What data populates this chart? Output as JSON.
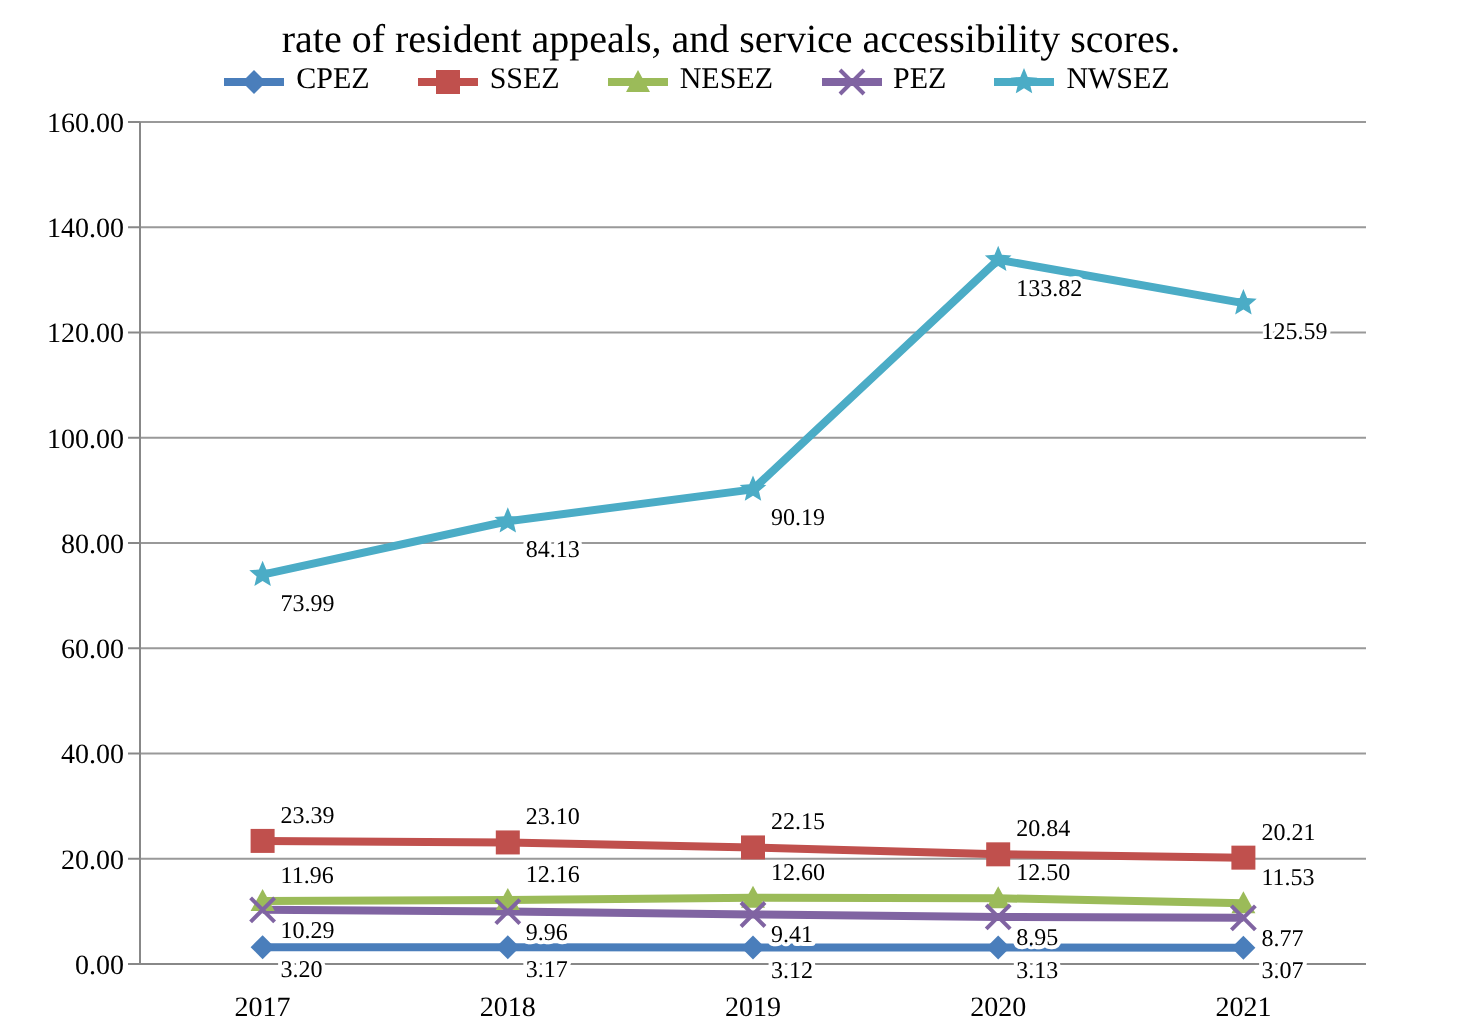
{
  "chart_data": {
    "type": "line",
    "title": "rate of resident appeals, and service accessibility scores.",
    "categories": [
      "2017",
      "2018",
      "2019",
      "2020",
      "2021"
    ],
    "series": [
      {
        "name": "CPEZ",
        "color": "#4a7ebb",
        "marker": "diamond",
        "values": [
          3.2,
          3.17,
          3.12,
          3.13,
          3.07
        ],
        "value_labels": [
          "3.20",
          "3.17",
          "3.12",
          "3.13",
          "3.07"
        ]
      },
      {
        "name": "SSEZ",
        "color": "#c0504d",
        "marker": "square",
        "values": [
          23.39,
          23.1,
          22.15,
          20.84,
          20.21
        ],
        "value_labels": [
          "23.39",
          "23.10",
          "22.15",
          "20.84",
          "20.21"
        ]
      },
      {
        "name": "NESEZ",
        "color": "#9bbb59",
        "marker": "triangle",
        "values": [
          11.96,
          12.16,
          12.6,
          12.5,
          11.53
        ],
        "value_labels": [
          "11.96",
          "12.16",
          "12.60",
          "12.50",
          "11.53"
        ]
      },
      {
        "name": "PEZ",
        "color": "#8064a2",
        "marker": "cross",
        "values": [
          10.29,
          9.96,
          9.41,
          8.95,
          8.77
        ],
        "value_labels": [
          "10.29",
          "9.96",
          "9.41",
          "8.95",
          "8.77"
        ]
      },
      {
        "name": "NWSEZ",
        "color": "#4bacc6",
        "marker": "star",
        "values": [
          73.99,
          84.13,
          90.19,
          133.82,
          125.59
        ],
        "value_labels": [
          "73.99",
          "84.13",
          "90.19",
          "133.82",
          "125.59"
        ]
      }
    ],
    "ylim": [
      0,
      160
    ],
    "yticks": [
      {
        "value": 0,
        "label": "0.00"
      },
      {
        "value": 20,
        "label": "20.00"
      },
      {
        "value": 40,
        "label": "40.00"
      },
      {
        "value": 60,
        "label": "60.00"
      },
      {
        "value": 80,
        "label": "80.00"
      },
      {
        "value": 100,
        "label": "100.00"
      },
      {
        "value": 120,
        "label": "120.00"
      },
      {
        "value": 140,
        "label": "140.00"
      },
      {
        "value": 160,
        "label": "160.00"
      }
    ],
    "grid": "y",
    "legend": "top",
    "line_style": "solid"
  }
}
